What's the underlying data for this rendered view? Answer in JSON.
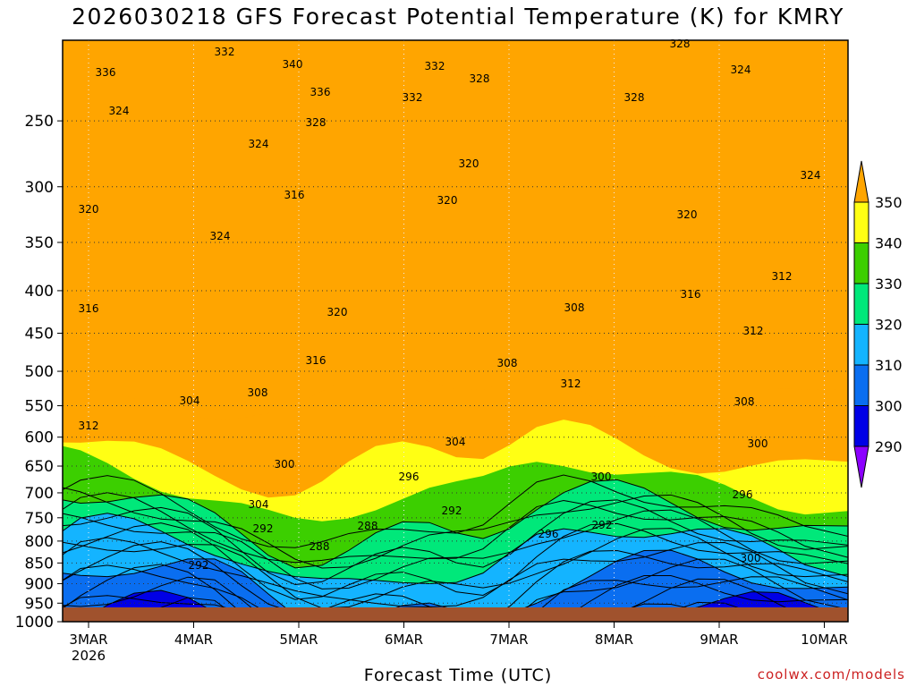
{
  "title": "2026030218 GFS Forecast Potential Temperature (K) for KMRY",
  "credit": "coolwx.com/models",
  "colors": {
    "ground": "#a0522d",
    "bands": [
      "#8c00ff",
      "#0000e6",
      "#0a6ef0",
      "#14b4ff",
      "#00e87a",
      "#3ccf00",
      "#ffff14",
      "#ffa500"
    ]
  },
  "chart_data": {
    "type": "contour",
    "xlabel": "Forecast Time (UTC)",
    "ylabel": "",
    "y_scale": "log",
    "y_inverted": true,
    "ylim": [
      1000,
      200
    ],
    "y_ticks": [
      250,
      300,
      350,
      400,
      450,
      500,
      550,
      600,
      650,
      700,
      750,
      800,
      850,
      900,
      950,
      1000
    ],
    "x_ticks": [
      {
        "label": "3MAR",
        "sub": "2026"
      },
      {
        "label": "4MAR",
        "sub": ""
      },
      {
        "label": "5MAR",
        "sub": ""
      },
      {
        "label": "6MAR",
        "sub": ""
      },
      {
        "label": "7MAR",
        "sub": ""
      },
      {
        "label": "8MAR",
        "sub": ""
      },
      {
        "label": "9MAR",
        "sub": ""
      },
      {
        "label": "10MAR",
        "sub": ""
      }
    ],
    "grid": true,
    "colorbar": {
      "levels": [
        290,
        300,
        310,
        320,
        330,
        340,
        350
      ],
      "labels": [
        "290",
        "300",
        "310",
        "320",
        "330",
        "340",
        "350"
      ]
    },
    "contour_levels": [
      288,
      292,
      296,
      300,
      304,
      308,
      312,
      316,
      320,
      324,
      328,
      332,
      336,
      340
    ],
    "contour_labels": [
      "336",
      "332",
      "340",
      "336",
      "332",
      "328",
      "324",
      "328",
      "332",
      "328",
      "324",
      "328",
      "324",
      "320",
      "316",
      "320",
      "324",
      "320",
      "324",
      "320",
      "316",
      "312",
      "316",
      "320",
      "308",
      "312",
      "316",
      "308",
      "312",
      "308",
      "304",
      "308",
      "312",
      "304",
      "300",
      "300",
      "296",
      "300",
      "304",
      "292",
      "296",
      "292",
      "288",
      "292",
      "296",
      "300",
      "288",
      "292"
    ],
    "contour_label_values": [
      336,
      332,
      340,
      336,
      332,
      328,
      324,
      328,
      332,
      328,
      324,
      328,
      324,
      320,
      316,
      320,
      324,
      320,
      324,
      320,
      316,
      312,
      316,
      320,
      308,
      312,
      316,
      308,
      312,
      308,
      304,
      308,
      312,
      304,
      300,
      300,
      296,
      300,
      304,
      292,
      296,
      292,
      288,
      292,
      296,
      300,
      288,
      292
    ]
  }
}
